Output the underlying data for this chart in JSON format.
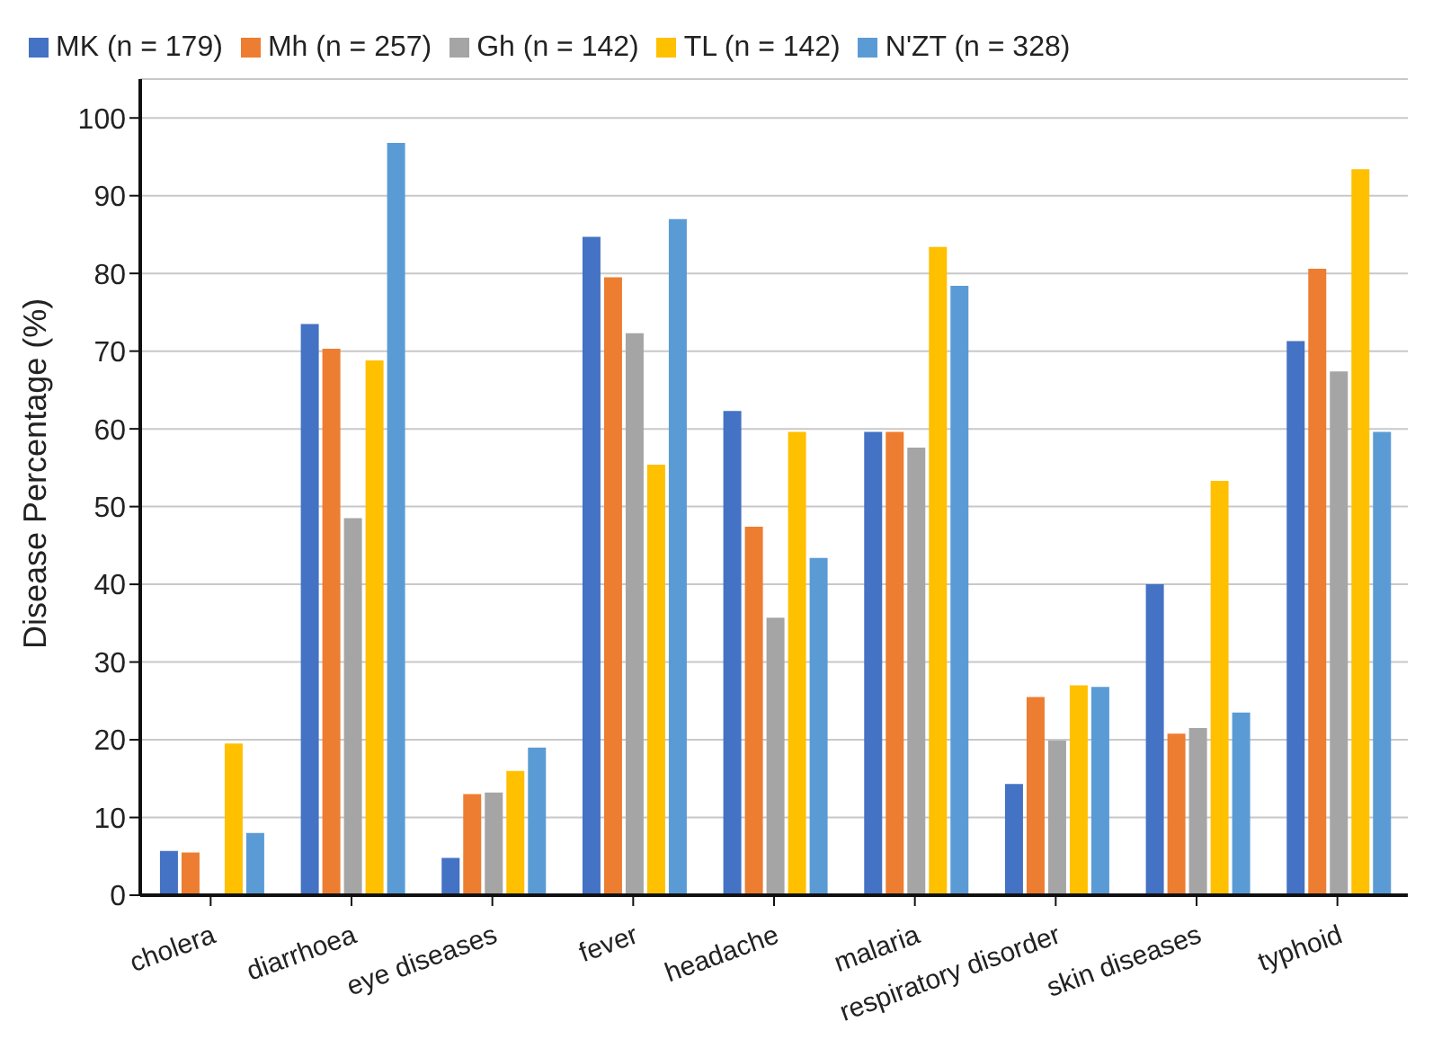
{
  "chart_data": {
    "type": "bar",
    "ylabel": "Disease Percentage (%)",
    "categories": [
      "cholera",
      "diarrhoea",
      "eye diseases",
      "fever",
      "headache",
      "malaria",
      "respiratory disorder",
      "skin diseases",
      "typhoid"
    ],
    "series": [
      {
        "name": "MK (n = 179)",
        "color": "#4472c4",
        "values": [
          5.7,
          73.5,
          4.8,
          84.7,
          62.3,
          59.6,
          14.3,
          40,
          71.3
        ]
      },
      {
        "name": "Mh (n = 257)",
        "color": "#ed7d31",
        "values": [
          5.5,
          70.3,
          13,
          79.5,
          47.4,
          59.6,
          25.5,
          20.8,
          80.6
        ]
      },
      {
        "name": "Gh (n = 142)",
        "color": "#a5a5a5",
        "values": [
          0,
          48.5,
          13.2,
          72.3,
          35.7,
          57.6,
          19.9,
          21.5,
          67.4
        ]
      },
      {
        "name": "TL (n = 142)",
        "color": "#ffc000",
        "values": [
          19.5,
          68.8,
          16,
          55.4,
          59.6,
          83.4,
          27,
          53.3,
          93.4
        ]
      },
      {
        "name": "N'ZT (n = 328)",
        "color": "#5b9bd5",
        "values": [
          8,
          96.8,
          19,
          87,
          43.4,
          78.4,
          26.8,
          23.5,
          59.6
        ]
      }
    ],
    "ylim": [
      0,
      105
    ],
    "yticks": [
      0,
      10,
      20,
      30,
      40,
      50,
      60,
      70,
      80,
      90,
      100
    ],
    "grid": "y",
    "legend": "top left"
  }
}
